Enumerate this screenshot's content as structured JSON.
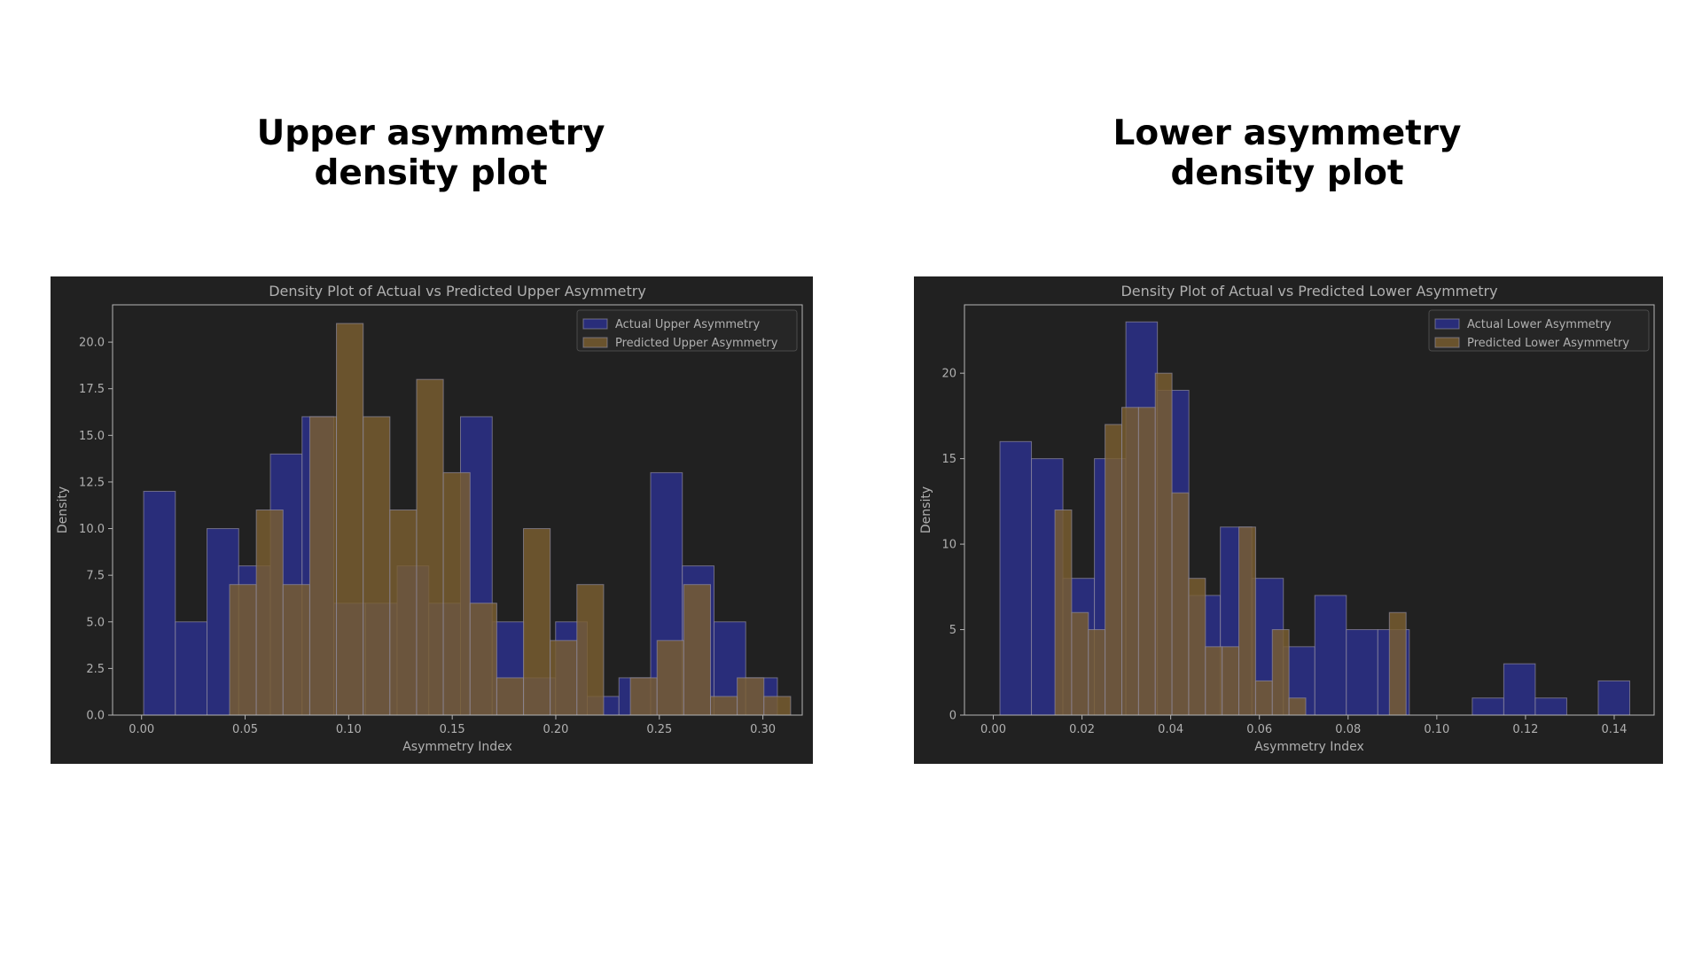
{
  "slide": {
    "left_heading": "Upper asymmetry\ndensity plot",
    "right_heading": "Lower asymmetry\ndensity plot"
  },
  "colors": {
    "panel_bg": "#212121",
    "actual": "#2a2f8a",
    "predicted": "#7a5e30",
    "text": "#b0b0b0",
    "axis": "#b5b5b5"
  },
  "chart_data": [
    {
      "type": "bar",
      "title": "Density Plot of Actual vs Predicted Upper Asymmetry",
      "xlabel": "Asymmetry Index",
      "ylabel": "Density",
      "xlim": [
        -0.014,
        0.319
      ],
      "ylim": [
        0,
        22
      ],
      "xticks": [
        0.0,
        0.05,
        0.1,
        0.15,
        0.2,
        0.25,
        0.3
      ],
      "xtick_labels": [
        "0.00",
        "0.05",
        "0.10",
        "0.15",
        "0.20",
        "0.25",
        "0.30"
      ],
      "yticks": [
        0.0,
        2.5,
        5.0,
        7.5,
        10.0,
        12.5,
        15.0,
        17.5,
        20.0
      ],
      "ytick_labels": [
        "0.0",
        "2.5",
        "5.0",
        "7.5",
        "10.0",
        "12.5",
        "15.0",
        "17.5",
        "20.0"
      ],
      "legend_position": "top-right",
      "series": [
        {
          "name": "Actual Upper Asymmetry",
          "bin_start": 0.001,
          "bin_width": 0.0153,
          "values": [
            12,
            5,
            10,
            8,
            14,
            16,
            6,
            6,
            8,
            6,
            16,
            5,
            2,
            5,
            1,
            2,
            13,
            8,
            5,
            2
          ]
        },
        {
          "name": "Predicted Upper Asymmetry",
          "bin_start": 0.0425,
          "bin_width": 0.0129,
          "values": [
            7,
            11,
            7,
            16,
            21,
            16,
            11,
            18,
            13,
            6,
            2,
            10,
            4,
            7,
            0,
            2,
            4,
            7,
            1,
            2,
            1
          ]
        }
      ]
    },
    {
      "type": "bar",
      "title": "Density Plot of Actual vs Predicted Lower Asymmetry",
      "xlabel": "Asymmetry Index",
      "ylabel": "Density",
      "xlim": [
        -0.0065,
        0.149
      ],
      "ylim": [
        0,
        24
      ],
      "xticks": [
        0.0,
        0.02,
        0.04,
        0.06,
        0.08,
        0.1,
        0.12,
        0.14
      ],
      "xtick_labels": [
        "0.00",
        "0.02",
        "0.04",
        "0.06",
        "0.08",
        "0.10",
        "0.12",
        "0.14"
      ],
      "yticks": [
        0,
        5,
        10,
        15,
        20
      ],
      "ytick_labels": [
        "0",
        "5",
        "10",
        "15",
        "20"
      ],
      "legend_position": "top-right",
      "series": [
        {
          "name": "Actual Lower Asymmetry",
          "bin_start": 0.0015,
          "bin_width": 0.0071,
          "values": [
            16,
            15,
            8,
            15,
            23,
            19,
            7,
            11,
            8,
            4,
            7,
            5,
            5,
            0,
            0,
            1,
            3,
            1,
            0,
            2
          ]
        },
        {
          "name": "Predicted Lower Asymmetry",
          "bin_start": 0.0139,
          "bin_width": 0.00377,
          "values": [
            12,
            6,
            5,
            17,
            18,
            18,
            20,
            13,
            8,
            4,
            4,
            11,
            2,
            5,
            1,
            0,
            0,
            0,
            0,
            0,
            6
          ]
        }
      ]
    }
  ]
}
